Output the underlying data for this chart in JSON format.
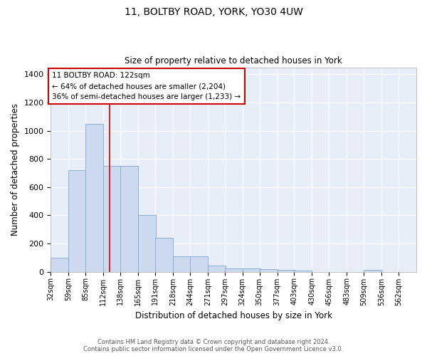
{
  "title1": "11, BOLTBY ROAD, YORK, YO30 4UW",
  "title2": "Size of property relative to detached houses in York",
  "xlabel": "Distribution of detached houses by size in York",
  "ylabel": "Number of detached properties",
  "bar_color": "#ccd9ee",
  "bar_edge_color": "#7fa8d4",
  "background_color": "#e8eef8",
  "grid_color": "#ffffff",
  "annotation_text": "11 BOLTBY ROAD: 122sqm\n← 64% of detached houses are smaller (2,204)\n36% of semi-detached houses are larger (1,233) →",
  "vline_x": 122,
  "vline_color": "#cc0000",
  "bins": [
    32,
    59,
    85,
    112,
    138,
    165,
    191,
    218,
    244,
    271,
    297,
    324,
    350,
    377,
    403,
    430,
    456,
    483,
    509,
    536,
    562
  ],
  "values": [
    100,
    720,
    1050,
    750,
    750,
    400,
    240,
    110,
    110,
    45,
    25,
    25,
    20,
    15,
    10,
    0,
    0,
    0,
    15,
    0,
    0
  ],
  "ylim": [
    0,
    1450
  ],
  "yticks": [
    0,
    200,
    400,
    600,
    800,
    1000,
    1200,
    1400
  ],
  "footer1": "Contains HM Land Registry data © Crown copyright and database right 2024.",
  "footer2": "Contains public sector information licensed under the Open Government Licence v3.0."
}
